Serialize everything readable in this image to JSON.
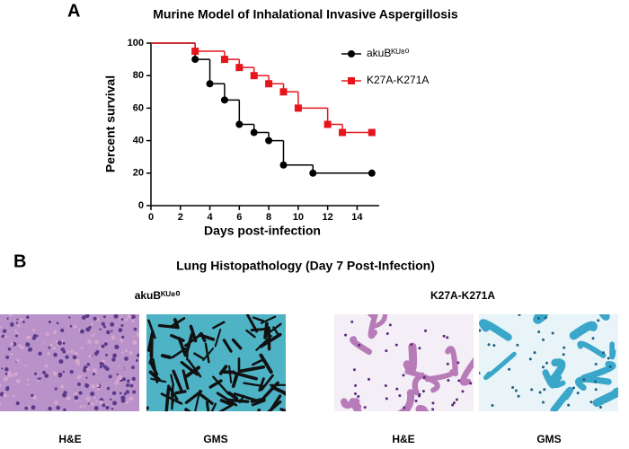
{
  "panel_a": {
    "label": "A"
  },
  "chart_data": {
    "type": "survival",
    "title": "Murine Model of Inhalational Invasive Aspergillosis",
    "x_label": "Days post-infection",
    "y_label": "Percent survival",
    "xlim": [
      0,
      15.5
    ],
    "xticks": [
      0,
      2,
      4,
      6,
      8,
      10,
      12,
      14
    ],
    "ylim": [
      0,
      100
    ],
    "yticks": [
      0,
      20,
      40,
      60,
      80,
      100
    ],
    "legend": "upper-right",
    "series": [
      {
        "name": "akuBᴷᵁ⁸⁰",
        "color": "#000000",
        "marker": "circle",
        "x": [
          0,
          3,
          4,
          5,
          6,
          7,
          8,
          9,
          11,
          15
        ],
        "values": [
          100,
          90,
          75,
          65,
          50,
          45,
          40,
          25,
          20,
          20
        ]
      },
      {
        "name": "K27A-K271A",
        "color": "#e8141b",
        "marker": "square",
        "x": [
          0,
          3,
          5,
          6,
          7,
          8,
          9,
          10,
          12,
          13,
          15
        ],
        "values": [
          100,
          95,
          90,
          85,
          80,
          75,
          70,
          60,
          50,
          45,
          45
        ]
      }
    ]
  },
  "panel_b": {
    "label": "B",
    "title": "Lung Histopathology (Day 7 Post-Infection)",
    "groups": [
      {
        "name": "akuBᴷᵁ⁸⁰",
        "images": [
          {
            "label": "H&E"
          },
          {
            "label": "GMS"
          }
        ]
      },
      {
        "name": "K27A-K271A",
        "images": [
          {
            "label": "H&E"
          },
          {
            "label": "GMS"
          }
        ]
      }
    ]
  }
}
